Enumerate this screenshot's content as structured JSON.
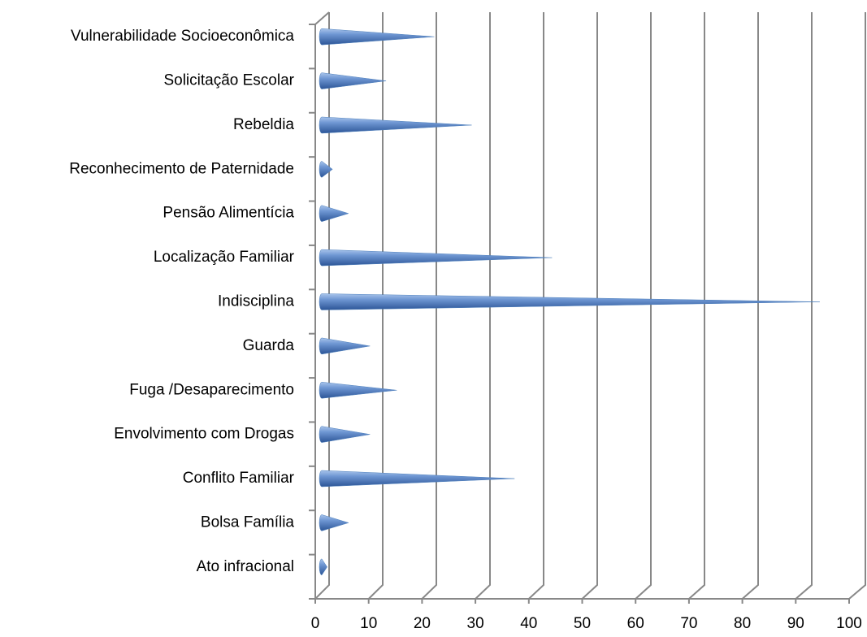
{
  "chart_data": {
    "type": "bar",
    "orientation": "horizontal",
    "categories": [
      "Vulnerabilidade Socioeconômica",
      "Solicitação Escolar",
      "Rebeldia",
      "Reconhecimento de Paternidade",
      "Pensão Alimentícia",
      "Localização Familiar",
      "Indisciplina",
      "Guarda",
      "Fuga /Desaparecimento",
      "Envolvimento com Drogas",
      "Conflito Familiar",
      "Bolsa Família",
      "Ato infracional"
    ],
    "values": [
      21,
      12,
      28,
      2,
      5,
      43,
      93,
      9,
      14,
      9,
      36,
      5,
      1
    ],
    "color": "#4f81bd",
    "xlim": [
      0,
      100
    ],
    "xticks": [
      0,
      10,
      20,
      30,
      40,
      50,
      60,
      70,
      80,
      90,
      100
    ],
    "grid": true
  }
}
